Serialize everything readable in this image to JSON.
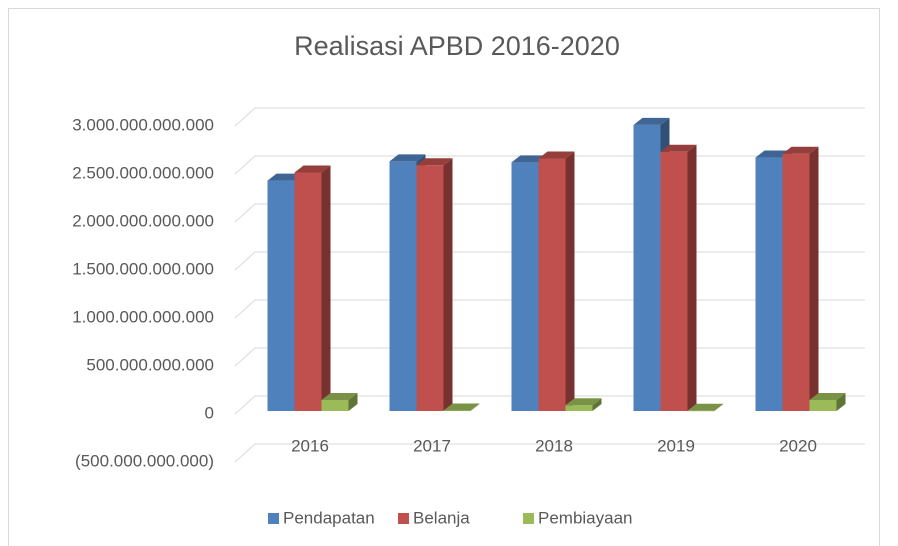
{
  "chart_data": {
    "type": "bar3d",
    "title": "Realisasi APBD 2016-2020",
    "categories": [
      "2016",
      "2017",
      "2018",
      "2019",
      "2020"
    ],
    "series": [
      {
        "name": "Pendapatan",
        "color": "#4f81bd",
        "values": [
          2400000000000,
          2600000000000,
          2590000000000,
          2980000000000,
          2640000000000
        ]
      },
      {
        "name": "Belanja",
        "color": "#c0504d",
        "values": [
          2485000000000,
          2560000000000,
          2630000000000,
          2700000000000,
          2680000000000
        ]
      },
      {
        "name": "Pembiayaan",
        "color": "#9bbb59",
        "values": [
          115000000000,
          5000000000,
          60000000000,
          3000000000,
          115000000000
        ]
      }
    ],
    "ylim": [
      -500000000000,
      3000000000000
    ],
    "yticks": [
      {
        "value": -500000000000,
        "label": "(500.000.000.000)"
      },
      {
        "value": 0,
        "label": "0"
      },
      {
        "value": 500000000000,
        "label": "500.000.000.000"
      },
      {
        "value": 1000000000000,
        "label": "1.000.000.000.000"
      },
      {
        "value": 1500000000000,
        "label": "1.500.000.000.000"
      },
      {
        "value": 2000000000000,
        "label": "2.000.000.000.000"
      },
      {
        "value": 2500000000000,
        "label": "2.500.000.000.000"
      },
      {
        "value": 3000000000000,
        "label": "3.000.000.000.000"
      }
    ],
    "negative_tick_color": "#ff0000",
    "grid": true,
    "legend": "bottom"
  }
}
